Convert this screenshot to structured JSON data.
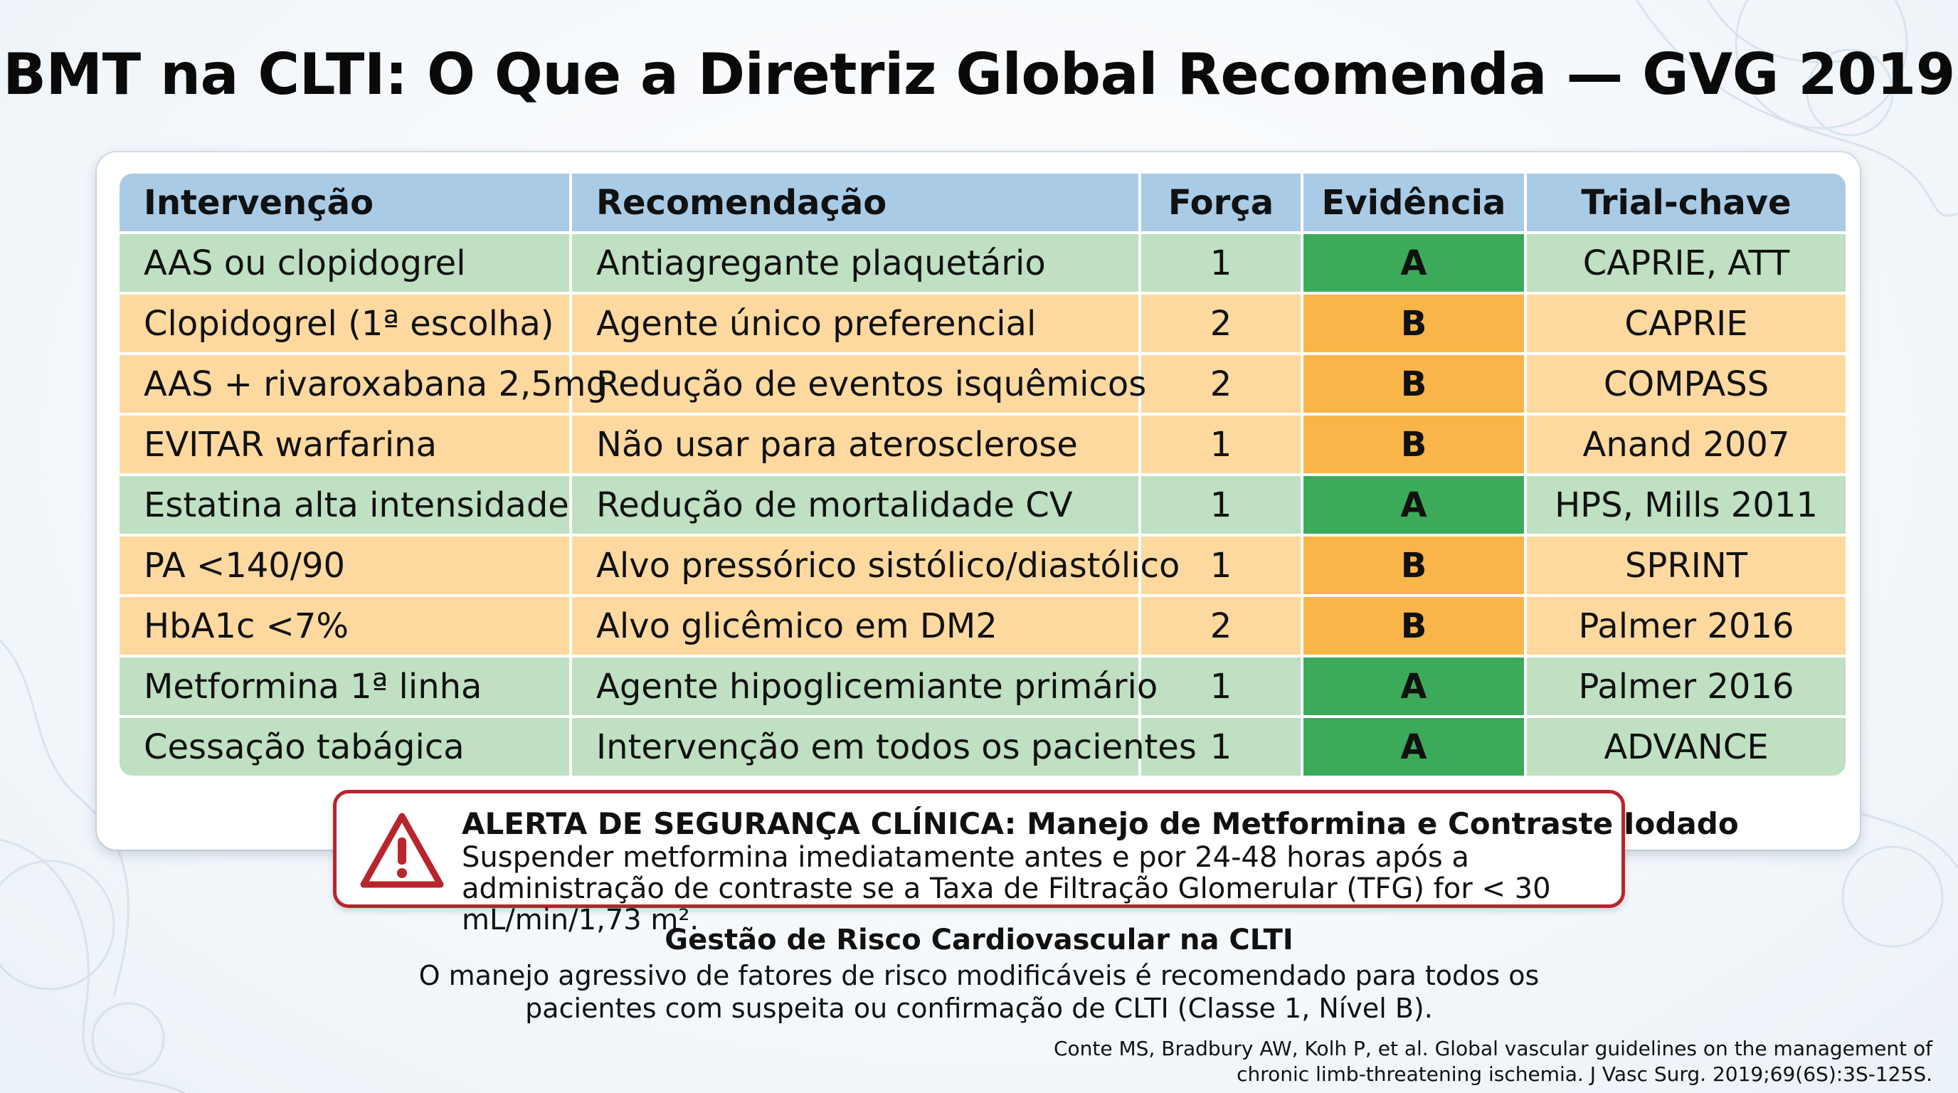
{
  "title": "BMT na CLTI: O Que a Diretriz Global Recomenda — GVG 2019",
  "colors": {
    "header": "#a9cbe6",
    "row_green": "#bfe0c2",
    "row_orange": "#fdd9a0",
    "evidence_A": "#3bab5a",
    "evidence_B": "#f9b548",
    "alert_border": "#b9252d"
  },
  "table": {
    "headers": [
      "Intervenção",
      "Recomendação",
      "Força",
      "Evidência",
      "Trial-chave"
    ],
    "rows": [
      {
        "intervention": "AAS ou clopidogrel",
        "recommendation": "Antiagregante plaquetário",
        "strength": "1",
        "evidence": "A",
        "trial": "CAPRIE, ATT"
      },
      {
        "intervention": "Clopidogrel (1ª escolha)",
        "recommendation": "Agente único preferencial",
        "strength": "2",
        "evidence": "B",
        "trial": "CAPRIE"
      },
      {
        "intervention": "AAS + rivaroxabana 2,5mg",
        "recommendation": "Redução de eventos isquêmicos",
        "strength": "2",
        "evidence": "B",
        "trial": "COMPASS"
      },
      {
        "intervention": "EVITAR warfarina",
        "recommendation": "Não usar para aterosclerose",
        "strength": "1",
        "evidence": "B",
        "trial": "Anand 2007"
      },
      {
        "intervention": "Estatina alta intensidade",
        "recommendation": "Redução de mortalidade CV",
        "strength": "1",
        "evidence": "A",
        "trial": "HPS, Mills 2011"
      },
      {
        "intervention": "PA <140/90",
        "recommendation": "Alvo pressórico sistólico/diastólico",
        "strength": "1",
        "evidence": "B",
        "trial": "SPRINT"
      },
      {
        "intervention": "HbA1c <7%",
        "recommendation": "Alvo glicêmico em DM2",
        "strength": "2",
        "evidence": "B",
        "trial": "Palmer 2016"
      },
      {
        "intervention": "Metformina 1ª linha",
        "recommendation": "Agente hipoglicemiante primário",
        "strength": "1",
        "evidence": "A",
        "trial": "Palmer 2016"
      },
      {
        "intervention": "Cessação tabágica",
        "recommendation": "Intervenção em todos os pacientes",
        "strength": "1",
        "evidence": "A",
        "trial": "ADVANCE"
      }
    ]
  },
  "alert": {
    "icon": "warning-triangle-icon",
    "title": "ALERTA DE SEGURANÇA CLÍNICA: Manejo de Metformina e Contraste Iodado",
    "body": "Suspender metformina imediatamente antes e por 24-48 horas após a administração de contraste se a Taxa de Filtração Glomerular (TFG) for < 30 mL/min/1,73 m²."
  },
  "summary": {
    "title": "Gestão de Risco Cardiovascular na CLTI",
    "body": "O manejo agressivo de fatores de risco modificáveis é recomendado para todos os pacientes com suspeita ou confirmação de CLTI (Classe 1, Nível B)."
  },
  "citation": {
    "line1": "Conte MS, Bradbury AW, Kolh P, et al. Global vascular guidelines on the management of",
    "line2": "chronic limb-threatening ischemia. J Vasc Surg. 2019;69(6S):3S-125S."
  }
}
